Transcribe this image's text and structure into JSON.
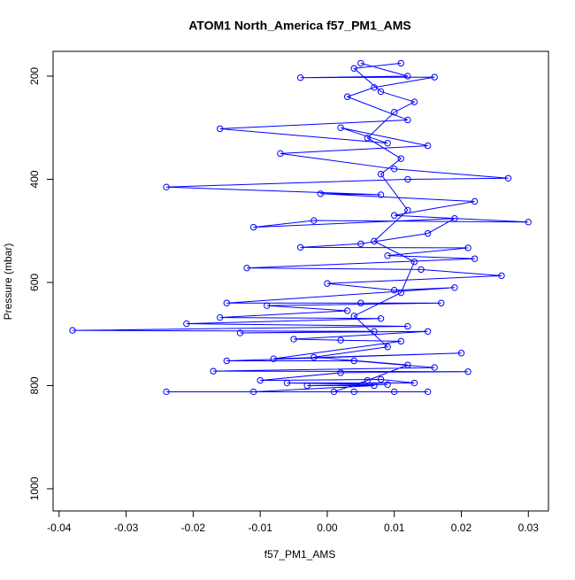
{
  "chart_data": {
    "type": "line",
    "title": "ATOM1 North_America f57_PM1_AMS",
    "x_label": "f57_PM1_AMS",
    "y_label": "Pressure (mbar)",
    "color": "#0000ff",
    "xlim": [
      -0.0409,
      0.033
    ],
    "ylim": [
      1043,
      152
    ],
    "xticks": [
      -0.04,
      -0.03,
      -0.02,
      -0.01,
      {
        "value": 0,
        "label": "0.00"
      },
      0.01,
      0.02,
      0.03
    ],
    "yticks": [
      200,
      400,
      600,
      800,
      1000
    ],
    "x": [
      0.005,
      0.012,
      -0.004,
      0.016,
      0.007,
      0.003,
      0.012,
      -0.016,
      0.009,
      0.002,
      0.015,
      -0.007,
      0.01,
      0.027,
      0.012,
      -0.024,
      0.008,
      -0.001,
      0.022,
      0.01,
      0.03,
      -0.002,
      -0.011,
      0.019,
      0.015,
      0.005,
      -0.004,
      0.021,
      0.009,
      0.022,
      -0.012,
      0.014,
      0.026,
      0.0,
      0.01,
      0.019,
      -0.015,
      0.005,
      0.017,
      -0.009,
      0.003,
      -0.016,
      0.008,
      -0.021,
      0.012,
      -0.038,
      0.007,
      -0.013,
      0.015,
      -0.005,
      0.002,
      0.011,
      -0.008,
      0.02,
      -0.015,
      0.004,
      0.016,
      -0.017,
      0.021,
      0.002,
      -0.01,
      0.008,
      0.013,
      -0.006,
      0.009,
      -0.003,
      0.007,
      -0.011,
      0.015,
      -0.024,
      0.004,
      0.01,
      0.001,
      0.006,
      0.012,
      -0.002,
      0.009,
      0.004,
      0.011,
      0.013,
      0.007,
      0.012,
      0.008,
      0.011,
      0.006,
      0.01,
      0.013,
      0.008,
      0.004,
      0.011
    ],
    "values": [
      175,
      200,
      203,
      202,
      222,
      240,
      285,
      302,
      330,
      300,
      335,
      350,
      380,
      398,
      400,
      415,
      430,
      428,
      443,
      470,
      483,
      480,
      493,
      476,
      505,
      525,
      532,
      533,
      548,
      554,
      572,
      575,
      587,
      602,
      615,
      610,
      640,
      640,
      640,
      645,
      655,
      668,
      670,
      680,
      685,
      693,
      695,
      698,
      695,
      710,
      712,
      714,
      748,
      737,
      752,
      752,
      765,
      772,
      773,
      775,
      790,
      788,
      795,
      795,
      798,
      800,
      800,
      812,
      812,
      812,
      812,
      812,
      812,
      790,
      760,
      745,
      725,
      665,
      620,
      560,
      520,
      460,
      390,
      360,
      320,
      270,
      250,
      230,
      185,
      175
    ]
  }
}
